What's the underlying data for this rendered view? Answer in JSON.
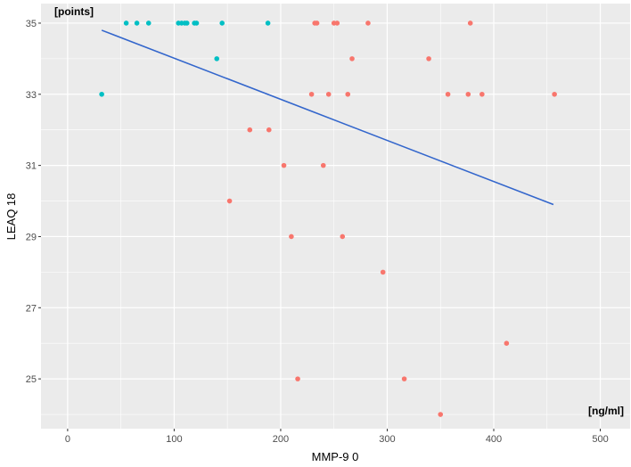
{
  "chart_data": {
    "type": "scatter",
    "xlabel": "MMP-9 0",
    "ylabel": "LEAQ 18",
    "x_unit_label": "[ng/ml]",
    "y_unit_label": "[points]",
    "xlim": [
      -25,
      528
    ],
    "ylim": [
      23.6,
      35.55
    ],
    "x_ticks": [
      0,
      100,
      200,
      300,
      400,
      500
    ],
    "y_ticks": [
      25,
      27,
      29,
      31,
      33,
      35
    ],
    "grid": true,
    "legend": "none",
    "colors": {
      "panel_background": "#ebebeb",
      "grid_major": "#ffffff",
      "group_a": "#00bfc4",
      "group_b": "#f8766d",
      "regression_line": "#3366cc"
    },
    "series": [
      {
        "color_key": "group_a",
        "points": [
          [
            32,
            33
          ],
          [
            55,
            35
          ],
          [
            65,
            35
          ],
          [
            76,
            35
          ],
          [
            104,
            35
          ],
          [
            107,
            35
          ],
          [
            110,
            35
          ],
          [
            112,
            35
          ],
          [
            119,
            35
          ],
          [
            121,
            35
          ],
          [
            140,
            34
          ],
          [
            145,
            35
          ],
          [
            188,
            35
          ]
        ]
      },
      {
        "color_key": "group_b",
        "points": [
          [
            152,
            30
          ],
          [
            171,
            32
          ],
          [
            189,
            32
          ],
          [
            203,
            31
          ],
          [
            210,
            29
          ],
          [
            216,
            25
          ],
          [
            229,
            33
          ],
          [
            232,
            35
          ],
          [
            234,
            35
          ],
          [
            240,
            31
          ],
          [
            245,
            33
          ],
          [
            250,
            35
          ],
          [
            253,
            35
          ],
          [
            258,
            29
          ],
          [
            263,
            33
          ],
          [
            267,
            34
          ],
          [
            282,
            35
          ],
          [
            296,
            28
          ],
          [
            316,
            25
          ],
          [
            339,
            34
          ],
          [
            350,
            24
          ],
          [
            357,
            33
          ],
          [
            376,
            33
          ],
          [
            378,
            35
          ],
          [
            389,
            33
          ],
          [
            412,
            26
          ],
          [
            457,
            33
          ]
        ]
      }
    ],
    "trend_line": {
      "x": [
        32,
        456
      ],
      "y": [
        34.8,
        29.9
      ]
    }
  }
}
